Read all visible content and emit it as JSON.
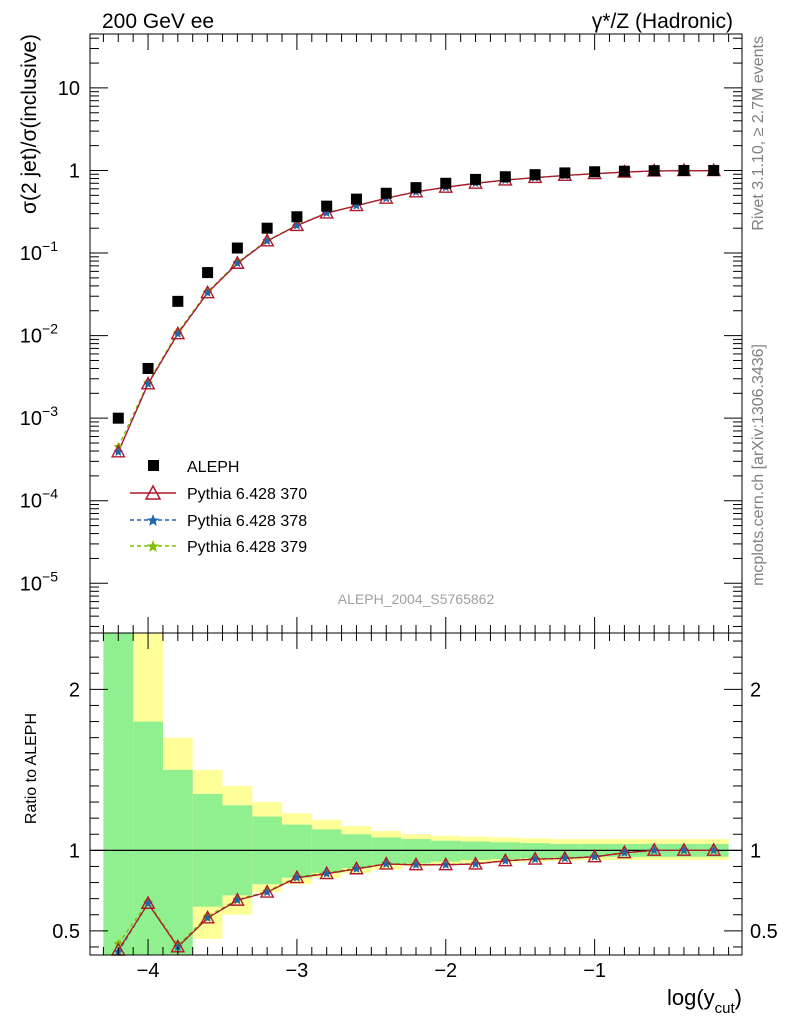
{
  "header": {
    "left": "200 GeV ee",
    "right": "γ*/Z (Hadronic)"
  },
  "side_labels": {
    "rivet": "Rivet 3.1.10, ≥ 2.7M events",
    "mcplots": "mcplots.cern.ch [arXiv:1306.3436]"
  },
  "watermark": "ALEPH_2004_S5765862",
  "colors": {
    "data": "#000000",
    "p370": "#b2182b",
    "p378": "#2166ac",
    "p379": "#7fbf00",
    "band_stat": "#90f090",
    "band_syst": "#ffff99"
  },
  "chart_data": [
    {
      "type": "scatter",
      "panel": "main",
      "ylabel": "σ(2 jet)/σ(inclusive)",
      "yscale": "log",
      "ylim": [
        2.5e-06,
        45
      ],
      "xlim": [
        -4.39,
        -0.01
      ],
      "yticks": [
        {
          "v": 1e-05,
          "b": "10",
          "e": "−5"
        },
        {
          "v": 0.0001,
          "b": "10",
          "e": "−4"
        },
        {
          "v": 0.001,
          "b": "10",
          "e": "−3"
        },
        {
          "v": 0.01,
          "b": "10",
          "e": "−2"
        },
        {
          "v": 0.1,
          "b": "10",
          "e": "−1"
        },
        {
          "v": 1,
          "b": "1",
          "e": ""
        },
        {
          "v": 10,
          "b": "10",
          "e": ""
        }
      ],
      "x": [
        -4.2,
        -4.0,
        -3.8,
        -3.6,
        -3.4,
        -3.2,
        -3.0,
        -2.8,
        -2.6,
        -2.4,
        -2.2,
        -2.0,
        -1.8,
        -1.6,
        -1.4,
        -1.2,
        -1.0,
        -0.8,
        -0.6,
        -0.4,
        -0.2
      ],
      "series": [
        {
          "name": "ALEPH",
          "marker": "square",
          "values": [
            0.001,
            0.004,
            0.026,
            0.058,
            0.115,
            0.2,
            0.275,
            0.37,
            0.45,
            0.53,
            0.62,
            0.7,
            0.78,
            0.84,
            0.89,
            0.935,
            0.965,
            0.98,
            0.995,
            1.0,
            1.0
          ]
        },
        {
          "name": "Pythia 6.428 370",
          "marker": "triangle",
          "line": "solid",
          "values": [
            0.00039,
            0.0026,
            0.0105,
            0.033,
            0.075,
            0.14,
            0.215,
            0.305,
            0.375,
            0.46,
            0.55,
            0.625,
            0.7,
            0.765,
            0.82,
            0.87,
            0.915,
            0.955,
            0.985,
            0.995,
            0.995
          ]
        },
        {
          "name": "Pythia 6.428 378",
          "marker": "star",
          "line": "dashed",
          "values": [
            0.00039,
            0.0026,
            0.0105,
            0.033,
            0.075,
            0.14,
            0.215,
            0.305,
            0.375,
            0.46,
            0.55,
            0.625,
            0.7,
            0.765,
            0.82,
            0.87,
            0.915,
            0.955,
            0.985,
            0.995,
            0.995
          ]
        },
        {
          "name": "Pythia 6.428 379",
          "marker": "star",
          "line": "dashed",
          "values": [
            0.00045,
            0.0027,
            0.011,
            0.034,
            0.077,
            0.142,
            0.217,
            0.307,
            0.377,
            0.462,
            0.552,
            0.627,
            0.702,
            0.767,
            0.822,
            0.872,
            0.917,
            0.957,
            0.986,
            0.996,
            0.996
          ]
        }
      ]
    },
    {
      "type": "line",
      "panel": "ratio",
      "ylabel": "Ratio to ALEPH",
      "xlabel_base": "log(y",
      "xlabel_sub": "cut",
      "xlabel_close": ")",
      "ylim": [
        0.35,
        2.35
      ],
      "xlim": [
        -4.39,
        -0.01
      ],
      "yticks": [
        0.5,
        1,
        2
      ],
      "xticks": [
        {
          "v": -4,
          "label": "−4"
        },
        {
          "v": -3,
          "label": "−3"
        },
        {
          "v": -2,
          "label": "−2"
        },
        {
          "v": -1,
          "label": "−1"
        }
      ],
      "bands": {
        "edges": [
          -4.3,
          -4.1,
          -3.9,
          -3.7,
          -3.5,
          -3.3,
          -3.1,
          -2.9,
          -2.7,
          -2.5,
          -2.3,
          -2.1,
          -1.9,
          -1.7,
          -1.5,
          -1.3,
          -1.1,
          -0.9,
          -0.7,
          -0.5,
          -0.3,
          -0.1
        ],
        "stat_lo": [
          0.3,
          0.3,
          0.3,
          0.65,
          0.72,
          0.79,
          0.83,
          0.86,
          0.89,
          0.91,
          0.92,
          0.93,
          0.94,
          0.945,
          0.95,
          0.955,
          0.96,
          0.96,
          0.96,
          0.96,
          0.96
        ],
        "stat_hi": [
          2.5,
          1.8,
          1.5,
          1.35,
          1.28,
          1.21,
          1.16,
          1.13,
          1.1,
          1.08,
          1.07,
          1.06,
          1.055,
          1.05,
          1.045,
          1.04,
          1.04,
          1.04,
          1.04,
          1.04,
          1.04
        ],
        "syst_lo": [
          0.3,
          0.3,
          0.3,
          0.45,
          0.6,
          0.74,
          0.79,
          0.83,
          0.86,
          0.88,
          0.9,
          0.91,
          0.92,
          0.925,
          0.93,
          0.935,
          0.94,
          0.94,
          0.94,
          0.94,
          0.94
        ],
        "syst_hi": [
          2.5,
          2.5,
          1.7,
          1.5,
          1.4,
          1.3,
          1.23,
          1.19,
          1.15,
          1.12,
          1.1,
          1.09,
          1.085,
          1.08,
          1.075,
          1.07,
          1.07,
          1.07,
          1.07,
          1.07,
          1.07
        ]
      },
      "x": [
        -4.2,
        -4.0,
        -3.8,
        -3.6,
        -3.4,
        -3.2,
        -3.0,
        -2.8,
        -2.6,
        -2.4,
        -2.2,
        -2.0,
        -1.8,
        -1.6,
        -1.4,
        -1.2,
        -1.0,
        -0.8,
        -0.6,
        -0.4,
        -0.2
      ],
      "series": [
        {
          "name": "Pythia 6.428 370",
          "marker": "triangle",
          "line": "solid",
          "values": [
            0.38,
            0.67,
            0.4,
            0.58,
            0.69,
            0.74,
            0.83,
            0.855,
            0.885,
            0.915,
            0.91,
            0.91,
            0.915,
            0.935,
            0.945,
            0.95,
            0.96,
            0.985,
            1.0,
            1.0,
            1.0
          ]
        },
        {
          "name": "Pythia 6.428 378",
          "marker": "star",
          "line": "dashed",
          "values": [
            0.37,
            0.67,
            0.4,
            0.58,
            0.69,
            0.74,
            0.83,
            0.855,
            0.885,
            0.915,
            0.91,
            0.91,
            0.915,
            0.935,
            0.945,
            0.95,
            0.96,
            0.985,
            1.0,
            1.0,
            1.0
          ]
        },
        {
          "name": "Pythia 6.428 379",
          "marker": "star",
          "line": "dashed",
          "values": [
            0.42,
            0.68,
            0.41,
            0.59,
            0.695,
            0.745,
            0.835,
            0.86,
            0.89,
            0.918,
            0.912,
            0.912,
            0.918,
            0.937,
            0.947,
            0.952,
            0.962,
            0.987,
            1.0,
            1.0,
            1.0
          ]
        }
      ]
    }
  ]
}
